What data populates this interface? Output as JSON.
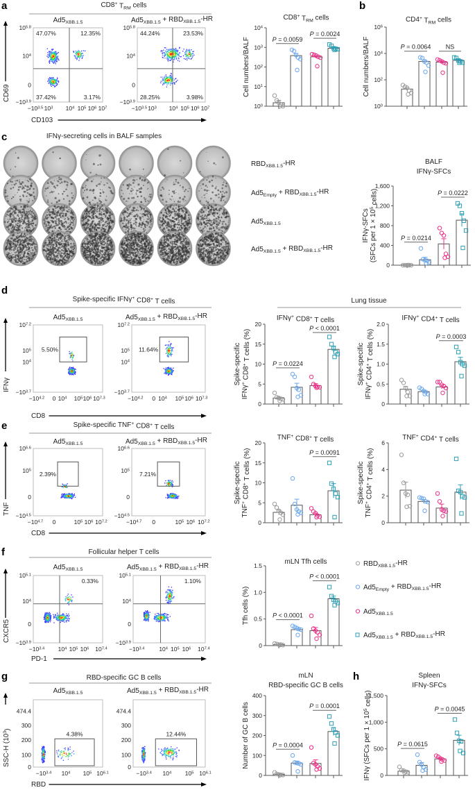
{
  "groups": [
    {
      "name": "RBD_{XBB.1.5}-HR",
      "color": "#9a9a9a",
      "marker": "circle"
    },
    {
      "name": "Ad5_{Empty} + RBD_{XBB.1.5}-HR",
      "color": "#6aa6ee",
      "marker": "circle"
    },
    {
      "name": "Ad5_{XBB.1.5}",
      "color": "#ee2d85",
      "marker": "circle"
    },
    {
      "name": "Ad5_{XBB.1.5} + RBD_{XBB.1.5}-HR",
      "color": "#2a9fb5",
      "marker": "square"
    }
  ],
  "panel_letters": [
    "a",
    "b",
    "c",
    "d",
    "e",
    "f",
    "g",
    "h"
  ],
  "flow_panels": [
    {
      "id": "a",
      "title": "CD8^{+} T_{RM} cells",
      "xlabel": "CD103",
      "ylabel": "CD69",
      "xticks": [
        "−10^{3.5}",
        "10^{3}",
        "10^{4}",
        "10^{5}",
        "10^{6}",
        "10^{7}"
      ],
      "yticks": [
        "10^{5.8}",
        "10^{4}",
        "0",
        "−10^{3.9}"
      ],
      "samples": [
        {
          "label": "Ad5_{XBB.1.5}",
          "percents": [
            "47.07%",
            "12.35%",
            "37.42%",
            "3.17%"
          ]
        },
        {
          "label": "Ad5_{XBB.1.5} + RBD_{XBB.1.5}-HR",
          "percents": [
            "44.24%",
            "23.53%",
            "28.25%",
            "3.98%"
          ]
        }
      ]
    },
    {
      "id": "d",
      "title": "Spike-specific IFNγ^{+} CD8^{+} T cells",
      "xlabel": "CD8",
      "ylabel": "IFNγ",
      "xticks": [
        "−10^{4.2}",
        "0",
        "10^{4}",
        "10^{5}",
        "10^{6}",
        "10^{7.3}"
      ],
      "yticks": [
        "10^{7.2}",
        "10^{5}",
        "10^{4}",
        "−10^{3.7}"
      ],
      "samples": [
        {
          "label": "Ad5_{XBB.1.5}",
          "percents": [
            "5.50%"
          ]
        },
        {
          "label": "Ad5_{XBB.1.5} + RBD_{XBB.1.5}-HR",
          "percents": [
            "11.64%"
          ]
        }
      ]
    },
    {
      "id": "e",
      "title": "Spike-specific TNF^{+} CD8^{+} T cells",
      "xlabel": "CD8",
      "ylabel": "TNF",
      "xticks": [
        "−10^{4.7}",
        "0",
        "10^{5}",
        "10^{6}",
        "10^{7.2}"
      ],
      "yticks": [
        "10^{6.6}",
        "10^{5}",
        "0",
        "−10^{4.5}"
      ],
      "samples": [
        {
          "label": "Ad5_{XBB.1.5}",
          "percents": [
            "2.39%"
          ]
        },
        {
          "label": "Ad5_{XBB.1.5} + RBD_{XBB.1.5}-HR",
          "percents": [
            "7.21%"
          ]
        }
      ]
    },
    {
      "id": "f",
      "title": "Follicular helper T cells",
      "xlabel": "PD-1",
      "ylabel": "CXCR5",
      "xticks": [
        "−10^{3.4}",
        "10^{4}",
        "10^{5}",
        "10^{6}",
        "10^{7.4}"
      ],
      "yticks": [
        "10^{5.1}",
        "10^{4}",
        "0",
        "−10^{3.9}"
      ],
      "samples": [
        {
          "label": "Ad5_{XBB.1.5}",
          "percents": [
            "0.33%"
          ]
        },
        {
          "label": "Ad5_{XBB.1.5} + RBD_{XBB.1.5}-HR",
          "percents": [
            "1.10%"
          ]
        }
      ]
    },
    {
      "id": "g",
      "title": "RBD-specific GC B cells",
      "xlabel": "RBD",
      "ylabel": "SSC-H (10^{3})",
      "xticks": [
        "−10^{3.4}",
        "10^{4}",
        "10^{5}",
        "10^{6.1}"
      ],
      "yticks": [
        "474.4",
        "300",
        "200",
        "100",
        "0"
      ],
      "samples": [
        {
          "label": "Ad5_{XBB.1.5}",
          "percents": [
            "4.38%"
          ]
        },
        {
          "label": "Ad5_{XBB.1.5} + RBD_{XBB.1.5}-HR",
          "percents": [
            "12.44%"
          ]
        }
      ]
    }
  ],
  "elispot": {
    "title": "IFNγ-secreting cells in BALF samples",
    "rows": [
      "RBD_{XBB.1.5}-HR",
      "Ad5_{Empty} + RBD_{XBB.1.5}-HR",
      "Ad5_{XBB.1.5}",
      "Ad5_{XBB.1.5} + RBD_{XBB.1.5}-HR"
    ]
  },
  "section_headers": {
    "lung_tissue": "Lung tissue"
  },
  "chart_data": [
    {
      "id": "a_cd8_trm",
      "type": "bar",
      "title": [
        "CD8^{+} T_{RM} cells"
      ],
      "ylabel": [
        "Cell numbers/BALF"
      ],
      "yscale": "log",
      "ylim": [
        1,
        10000
      ],
      "yticks": [
        1,
        10,
        100,
        1000,
        10000
      ],
      "yticklabels": [
        "10^{0}",
        "10^{1}",
        "10^{2}",
        "10^{3}",
        "10^{4}"
      ],
      "means": [
        1.5,
        380,
        330,
        900
      ],
      "sem": [
        0.5,
        110,
        50,
        110
      ],
      "points": [
        [
          3.5,
          2,
          1.5,
          1.2,
          1,
          1
        ],
        [
          750,
          650,
          400,
          300,
          250,
          70
        ],
        [
          450,
          420,
          380,
          330,
          300,
          110
        ],
        [
          1400,
          1200,
          900,
          850,
          800,
          750
        ]
      ],
      "comparisons": [
        {
          "groups": [
            1,
            2
          ],
          "label": "P = 0.0059"
        },
        {
          "groups": [
            3,
            4
          ],
          "label": "P = 0.0024"
        }
      ],
      "grid": false
    },
    {
      "id": "b_cd4_trm",
      "type": "bar",
      "title": [
        "CD4^{+} T_{RM} cells"
      ],
      "ylabel": [
        "Cell numbers/BALF"
      ],
      "yscale": "log",
      "ylim": [
        1,
        1000000
      ],
      "yticks": [
        1,
        100,
        10000,
        1000000
      ],
      "yticklabels": [
        "10^{0}",
        "10^{2}",
        "10^{4}",
        "10^{6}"
      ],
      "means": [
        20,
        2500,
        2200,
        3000
      ],
      "sem": [
        5,
        800,
        500,
        600
      ],
      "points": [
        [
          40,
          30,
          25,
          15,
          10,
          8
        ],
        [
          5000,
          4500,
          2500,
          2000,
          1200,
          400
        ],
        [
          3500,
          3000,
          2500,
          2000,
          1800,
          350
        ],
        [
          5000,
          4500,
          3000,
          2500,
          2000,
          2000
        ]
      ],
      "comparisons": [
        {
          "groups": [
            1,
            2
          ],
          "label": "P = 0.0064"
        },
        {
          "groups": [
            3,
            4
          ],
          "label": "NS"
        }
      ],
      "grid": false
    },
    {
      "id": "c_balf_sfc",
      "type": "bar",
      "title": [
        "BALF",
        "IFNγ-SFCs"
      ],
      "ylabel": [
        "IFNγ-SFCs",
        "(SFCs per 1 × 10^{5} cells)"
      ],
      "yscale": "linear",
      "ylim": [
        0,
        1600
      ],
      "yticks": [
        0,
        400,
        800,
        1200,
        1600
      ],
      "yticklabels": [
        "0",
        "400",
        "800",
        "1,200",
        "1,600"
      ],
      "means": [
        5,
        110,
        430,
        910
      ],
      "sem": [
        3,
        50,
        105,
        130
      ],
      "points": [
        [
          0,
          0,
          0,
          0,
          0,
          0
        ],
        [
          340,
          120,
          100,
          90,
          60,
          40
        ],
        [
          750,
          650,
          600,
          230,
          170,
          150
        ],
        [
          1250,
          1200,
          1050,
          900,
          700,
          350
        ]
      ],
      "comparisons": [
        {
          "groups": [
            1,
            2
          ],
          "label": "P = 0.0214"
        },
        {
          "groups": [
            3,
            4
          ],
          "label": "P = 0.0222"
        }
      ],
      "grid": false
    },
    {
      "id": "d_ifng_cd8",
      "type": "bar",
      "title": [
        "IFNγ^{+} CD8^{+} T cells"
      ],
      "ylabel": [
        "Spike-specific",
        "IFNγ^{+} CD8^{+} T cells (%)"
      ],
      "yscale": "linear",
      "ylim": [
        0,
        20
      ],
      "yticks": [
        0,
        5,
        10,
        15,
        20
      ],
      "yticklabels": [
        "0",
        "5",
        "10",
        "15",
        "20"
      ],
      "means": [
        1.5,
        4.2,
        4.6,
        13.7
      ],
      "sem": [
        0.3,
        1.0,
        0.5,
        0.8
      ],
      "points": [
        [
          2.8,
          1.7,
          1.5,
          1.3,
          1.2,
          0.8
        ],
        [
          7.5,
          6.8,
          4,
          3.6,
          2.2,
          1.8
        ],
        [
          6.8,
          5,
          4.5,
          4.3,
          4.2,
          4.1
        ],
        [
          16.8,
          15,
          14,
          13,
          12.5,
          11.8
        ]
      ],
      "comparisons": [
        {
          "groups": [
            1,
            2
          ],
          "label": "P = 0.0224"
        },
        {
          "groups": [
            3,
            4
          ],
          "label": "P < 0.0001"
        }
      ],
      "grid": false
    },
    {
      "id": "d_ifng_cd4",
      "type": "bar",
      "title": [
        "IFNγ^{+} CD4^{+} T cells"
      ],
      "ylabel": [
        "Spike-specific",
        "IFNγ^{+} CD4^{+} T cells (%)"
      ],
      "yscale": "linear",
      "ylim": [
        0,
        2
      ],
      "yticks": [
        0,
        0.5,
        1,
        1.5,
        2
      ],
      "yticklabels": [
        "0",
        "0.5",
        "1.0",
        "1.5",
        "2.0"
      ],
      "means": [
        0.37,
        0.31,
        0.43,
        1.06
      ],
      "sem": [
        0.07,
        0.03,
        0.05,
        0.11
      ],
      "points": [
        [
          0.6,
          0.53,
          0.4,
          0.3,
          0.2,
          0.2
        ],
        [
          0.41,
          0.38,
          0.33,
          0.3,
          0.25,
          0.25
        ],
        [
          0.55,
          0.55,
          0.48,
          0.45,
          0.4,
          0.28
        ],
        [
          1.43,
          1.3,
          1.05,
          1.0,
          0.96,
          0.7
        ]
      ],
      "comparisons": [
        {
          "groups": [
            3,
            4
          ],
          "label": "P = 0.0003"
        }
      ],
      "grid": false
    },
    {
      "id": "e_tnf_cd8",
      "type": "bar",
      "title": [
        "TNF^{+} CD8^{+} T cells"
      ],
      "ylabel": [
        "Spike-specific",
        "TNF^{+} CD8^{+} T cells (%)"
      ],
      "yscale": "linear",
      "ylim": [
        0,
        20
      ],
      "yticks": [
        0,
        5,
        10,
        15,
        20
      ],
      "yticklabels": [
        "0",
        "5",
        "10",
        "15",
        "20"
      ],
      "means": [
        2.6,
        4.4,
        2.0,
        8.0
      ],
      "sem": [
        0.6,
        1.5,
        0.4,
        1.8
      ],
      "points": [
        [
          4.7,
          3.8,
          3.0,
          2.5,
          2.0,
          0.8
        ],
        [
          11.1,
          4.7,
          3.3,
          2.8,
          2.5,
          2.1
        ],
        [
          3.6,
          2.8,
          2.4,
          1.8,
          1.5,
          1.4
        ],
        [
          15,
          9.8,
          8.5,
          7.3,
          6.4,
          1.4
        ]
      ],
      "comparisons": [
        {
          "groups": [
            3,
            4
          ],
          "label": "P = 0.0091"
        }
      ],
      "grid": false
    },
    {
      "id": "e_tnf_cd4",
      "type": "bar",
      "title": [
        "TNF^{+} CD4^{+} T cells"
      ],
      "ylabel": [
        "Spike-specific",
        "TNF^{+} CD4^{+} T cells (%)"
      ],
      "yscale": "linear",
      "ylim": [
        0,
        6
      ],
      "yticks": [
        0,
        2,
        4,
        6
      ],
      "yticklabels": [
        "0",
        "2",
        "4",
        "6"
      ],
      "means": [
        2.45,
        1.6,
        1.1,
        2.3
      ],
      "sem": [
        0.6,
        0.15,
        0.3,
        0.55
      ],
      "points": [
        [
          5.1,
          3.0,
          2.2,
          2.1,
          1.25,
          1.2
        ],
        [
          1.9,
          1.85,
          1.8,
          1.6,
          1.55,
          0.9
        ],
        [
          2.2,
          1.6,
          1.0,
          0.9,
          0.85,
          0.5
        ],
        [
          4.8,
          2.4,
          2.3,
          2.0,
          1.9,
          0.7
        ]
      ],
      "comparisons": [],
      "grid": false
    },
    {
      "id": "f_tfh",
      "type": "bar",
      "title": [
        "mLN Tfh cells"
      ],
      "ylabel": [
        "Tfh cells (%)"
      ],
      "yscale": "linear",
      "ylim": [
        0,
        1.5
      ],
      "yticks": [
        0,
        0.5,
        1,
        1.5
      ],
      "yticklabels": [
        "0",
        "0.5",
        "1.0",
        "1.5"
      ],
      "means": [
        0.02,
        0.3,
        0.28,
        0.88
      ],
      "sem": [
        0.005,
        0.025,
        0.06,
        0.05
      ],
      "points": [
        [
          0.04,
          0.03,
          0.02,
          0.02,
          0.01,
          0.01
        ],
        [
          0.37,
          0.35,
          0.33,
          0.31,
          0.3,
          0.2
        ],
        [
          0.56,
          0.32,
          0.28,
          0.25,
          0.2,
          0.13
        ],
        [
          1.1,
          0.93,
          0.86,
          0.83,
          0.8,
          0.76
        ]
      ],
      "comparisons": [
        {
          "groups": [
            1,
            2
          ],
          "label": "P < 0.0001"
        },
        {
          "groups": [
            3,
            4
          ],
          "label": "P < 0.0001"
        }
      ],
      "grid": false
    },
    {
      "id": "g_gc_b",
      "type": "bar",
      "title": [
        "mLN",
        "RBD-specific GC B cells"
      ],
      "ylabel": [
        "Number of GC B cells"
      ],
      "yscale": "linear",
      "ylim": [
        0,
        400
      ],
      "yticks": [
        0,
        100,
        200,
        300,
        400
      ],
      "yticklabels": [
        "0",
        "100",
        "200",
        "300",
        "400"
      ],
      "means": [
        5,
        62,
        60,
        220
      ],
      "sem": [
        3,
        10,
        18,
        20
      ],
      "points": [
        [
          15,
          8,
          5,
          3,
          2,
          1
        ],
        [
          100,
          65,
          62,
          60,
          55,
          20
        ],
        [
          140,
          62,
          55,
          45,
          35,
          30
        ],
        [
          295,
          260,
          230,
          215,
          200,
          160
        ]
      ],
      "comparisons": [
        {
          "groups": [
            1,
            2
          ],
          "label": "P = 0.0004"
        },
        {
          "groups": [
            3,
            4
          ],
          "label": "P = 0.0001"
        }
      ],
      "grid": false
    },
    {
      "id": "h_spleen_sfc",
      "type": "bar",
      "title": [
        "Spleen",
        "IFNγ-SFCs"
      ],
      "ylabel": [
        "IFNγ (SFCs per 1 × 10^{5} cells)"
      ],
      "yscale": "linear",
      "ylim": [
        0,
        1500
      ],
      "yticks": [
        0,
        500,
        1000,
        1500
      ],
      "yticklabels": [
        "0",
        "500",
        "1,000",
        "1,500"
      ],
      "means": [
        80,
        190,
        310,
        660
      ],
      "sem": [
        20,
        50,
        20,
        95
      ],
      "points": [
        [
          160,
          100,
          90,
          70,
          60,
          50
        ],
        [
          390,
          250,
          200,
          150,
          110,
          90
        ],
        [
          370,
          350,
          320,
          300,
          280,
          260
        ],
        [
          1050,
          800,
          650,
          640,
          420,
          460
        ]
      ],
      "comparisons": [
        {
          "groups": [
            1,
            2
          ],
          "label": "P = 0.0615"
        },
        {
          "groups": [
            3,
            4
          ],
          "label": "P = 0.0045"
        }
      ],
      "grid": false
    }
  ]
}
